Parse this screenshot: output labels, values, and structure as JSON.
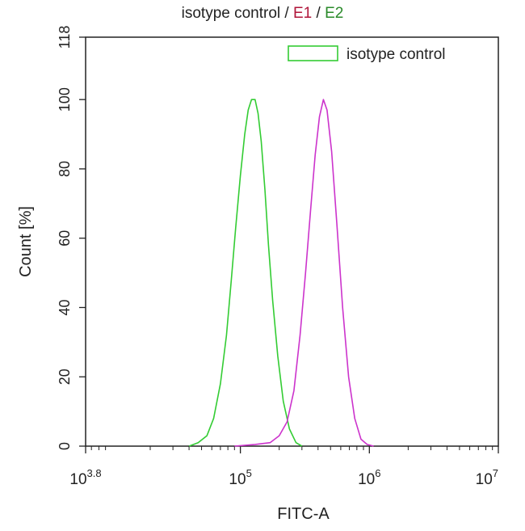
{
  "title": {
    "part1": "isotype control",
    "sep1": " / ",
    "part2": "E1",
    "sep2": " / ",
    "part3": "E2",
    "colors": {
      "part1": "#222222",
      "part2": "#b0153a",
      "part3": "#2a8a2a"
    }
  },
  "chart_data": {
    "type": "area",
    "xscale": "log",
    "xlim": [
      6310,
      10000000
    ],
    "ylim": [
      0,
      118
    ],
    "xlabel": "FITC-A",
    "ylabel": "Count [%]",
    "xticks": [
      {
        "value": 6310,
        "base": "10",
        "exp": "3.8"
      },
      {
        "value": 100000,
        "base": "10",
        "exp": "5"
      },
      {
        "value": 1000000,
        "base": "10",
        "exp": "6"
      },
      {
        "value": 10000000,
        "base": "10",
        "exp": "7"
      }
    ],
    "yticks": [
      0,
      20,
      40,
      60,
      80,
      100,
      118
    ],
    "legend": {
      "position": "top-right",
      "entries": [
        {
          "label": "isotype control",
          "color": "#33cc33"
        }
      ]
    },
    "series": [
      {
        "name": "isotype control",
        "color": "#33cc33",
        "points": [
          [
            40000,
            0
          ],
          [
            47000,
            1
          ],
          [
            55000,
            3
          ],
          [
            62000,
            8
          ],
          [
            70000,
            18
          ],
          [
            78000,
            32
          ],
          [
            85000,
            48
          ],
          [
            92000,
            63
          ],
          [
            100000,
            78
          ],
          [
            108000,
            90
          ],
          [
            115000,
            97
          ],
          [
            122000,
            100
          ],
          [
            130000,
            100
          ],
          [
            137000,
            96
          ],
          [
            145000,
            88
          ],
          [
            155000,
            74
          ],
          [
            165000,
            58
          ],
          [
            178000,
            42
          ],
          [
            195000,
            26
          ],
          [
            215000,
            13
          ],
          [
            240000,
            5
          ],
          [
            270000,
            1
          ],
          [
            300000,
            0
          ]
        ]
      },
      {
        "color": "#cc33cc",
        "points": [
          [
            90000,
            0
          ],
          [
            130000,
            0.5
          ],
          [
            170000,
            1
          ],
          [
            200000,
            3
          ],
          [
            230000,
            7
          ],
          [
            260000,
            16
          ],
          [
            290000,
            32
          ],
          [
            320000,
            50
          ],
          [
            350000,
            68
          ],
          [
            380000,
            84
          ],
          [
            410000,
            95
          ],
          [
            440000,
            100
          ],
          [
            470000,
            97
          ],
          [
            510000,
            85
          ],
          [
            560000,
            64
          ],
          [
            620000,
            40
          ],
          [
            690000,
            20
          ],
          [
            770000,
            8
          ],
          [
            860000,
            2
          ],
          [
            960000,
            0.5
          ],
          [
            1080000,
            0
          ]
        ]
      }
    ]
  }
}
